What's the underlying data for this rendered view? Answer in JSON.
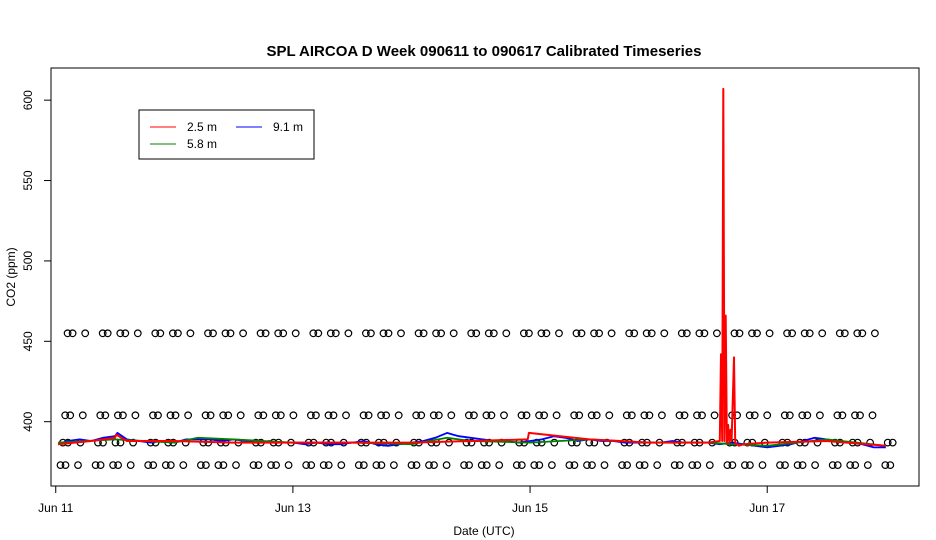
{
  "chart_data": {
    "type": "line",
    "title": "SPL AIRCOA D  Week 090611 to 090617  Calibrated Timeseries",
    "xlabel": "Date (UTC)",
    "ylabel": "CO2 (ppm)",
    "xlim": [
      -0.04,
      7.28
    ],
    "ylim": [
      360,
      620
    ],
    "x_ticks": [
      {
        "value": 0,
        "label": "Jun 11"
      },
      {
        "value": 2,
        "label": "Jun 13"
      },
      {
        "value": 4,
        "label": "Jun 15"
      },
      {
        "value": 6,
        "label": "Jun 17"
      }
    ],
    "y_ticks": [
      400,
      450,
      500,
      550,
      600
    ],
    "legend": {
      "position": "top-left",
      "entries": [
        {
          "label": "2.5 m",
          "color": "#ff0000"
        },
        {
          "label": "5.8 m",
          "color": "#008000"
        },
        {
          "label": "9.1 m",
          "color": "#0000ff"
        }
      ]
    },
    "series": [
      {
        "name": "2.5 m",
        "color": "#ff0000",
        "x": [
          0.02,
          0.3,
          0.5,
          0.51,
          0.6,
          1.0,
          1.5,
          2.0,
          2.5,
          3.0,
          3.5,
          3.98,
          3.99,
          4.5,
          5.0,
          5.5,
          5.6,
          5.61,
          5.62,
          5.63,
          5.64,
          5.65,
          5.66,
          5.67,
          5.68,
          5.69,
          5.7,
          5.72,
          5.73,
          5.74,
          5.75,
          5.76,
          5.8,
          6.0,
          6.5,
          7.0
        ],
        "y": [
          386,
          388,
          390,
          392,
          388,
          388,
          387,
          387,
          387,
          387,
          388,
          389,
          393,
          389,
          387,
          387,
          388,
          442,
          388,
          607,
          388,
          466,
          387,
          398,
          387,
          395,
          388,
          440,
          387,
          386,
          386,
          385,
          386,
          387,
          388,
          385
        ]
      },
      {
        "name": "5.8 m",
        "color": "#008000",
        "x": [
          0.02,
          0.5,
          1.0,
          1.2,
          1.5,
          2.0,
          2.5,
          3.0,
          3.3,
          3.5,
          4.0,
          4.5,
          5.0,
          5.5,
          5.7,
          6.0,
          6.5,
          7.0
        ],
        "y": [
          387,
          389,
          387,
          390,
          389,
          387,
          387,
          386,
          390,
          388,
          387,
          389,
          387,
          387,
          386,
          385,
          389,
          385
        ]
      },
      {
        "name": "9.1 m",
        "color": "#0000ff",
        "x": [
          0.02,
          0.1,
          0.2,
          0.3,
          0.4,
          0.5,
          0.52,
          0.6,
          0.7,
          0.8,
          0.9,
          1.0,
          1.1,
          1.2,
          1.3,
          1.4,
          1.5,
          1.6,
          1.7,
          1.8,
          1.9,
          2.0,
          2.1,
          2.2,
          2.3,
          2.4,
          2.5,
          2.6,
          2.7,
          2.8,
          2.9,
          3.0,
          3.1,
          3.2,
          3.3,
          3.35,
          3.4,
          3.5,
          3.6,
          3.7,
          3.8,
          3.9,
          4.0,
          4.1,
          4.2,
          4.3,
          4.4,
          4.5,
          4.6,
          4.7,
          4.8,
          4.9,
          5.0,
          5.1,
          5.2,
          5.3,
          5.4,
          5.5,
          5.6,
          5.7,
          5.8,
          5.9,
          6.0,
          6.1,
          6.2,
          6.3,
          6.4,
          6.5,
          6.6,
          6.7,
          6.8,
          6.9,
          7.0
        ],
        "y": [
          386,
          388,
          389,
          388,
          390,
          391,
          393,
          389,
          388,
          387,
          388,
          387,
          389,
          389,
          389,
          388,
          389,
          388,
          387,
          388,
          387,
          387,
          386,
          387,
          386,
          386,
          387,
          388,
          386,
          385,
          386,
          387,
          388,
          390,
          393,
          392,
          391,
          390,
          389,
          388,
          388,
          387,
          388,
          389,
          391,
          390,
          388,
          389,
          388,
          388,
          387,
          387,
          387,
          387,
          388,
          387,
          387,
          387,
          386,
          387,
          386,
          385,
          384,
          385,
          386,
          388,
          390,
          389,
          388,
          387,
          386,
          384,
          384
        ]
      }
    ],
    "calibration_points": {
      "marker": "circle",
      "color": "#000000",
      "levels": [
        373,
        387,
        404,
        455
      ]
    }
  }
}
